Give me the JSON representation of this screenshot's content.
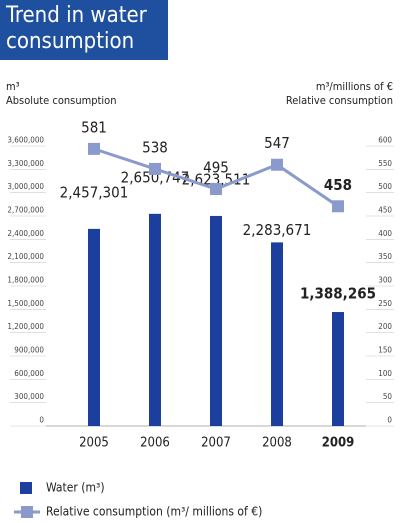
{
  "chart_data": {
    "type": "bar_line",
    "title": "Trend in water consumption",
    "y_unit": "m³",
    "y_label": "Absolute consumption",
    "y2_unit": "m³/millions of €",
    "y2_label": "Relative consumption",
    "categories": [
      "2005",
      "2006",
      "2007",
      "2008",
      "2009"
    ],
    "series": [
      {
        "name": "Water (m³)",
        "type": "bar",
        "color": "#1c3f9e",
        "values": [
          2457301,
          2650747,
          2623511,
          2283671,
          1388265
        ],
        "value_labels": [
          "2,457,301",
          "2,650,747",
          "2,623,511",
          "2,283,671",
          "1,388,265"
        ]
      },
      {
        "name": "Relative consumption (m³/ millions of €)",
        "type": "line",
        "axis": "y2",
        "color": "#8a9acc",
        "values": [
          581,
          538,
          495,
          547,
          458
        ]
      }
    ],
    "ylim": [
      0,
      3600000
    ],
    "yticks": [
      0,
      {
        "value": 300000,
        "label": "300,000"
      },
      {
        "value": 600000,
        "label": "600,000"
      },
      {
        "value": 900000,
        "label": "900,000"
      },
      {
        "value": 1200000,
        "label": "1,200,000"
      },
      {
        "value": 1500000,
        "label": "1,500,000"
      },
      {
        "value": 1800000,
        "label": "1,800,000"
      },
      {
        "value": 2100000,
        "label": "2,100,000"
      },
      {
        "value": 2400000,
        "label": "2,400,000"
      },
      {
        "value": 2700000,
        "label": "2,700,000"
      },
      {
        "value": 3000000,
        "label": "3,000,000"
      },
      {
        "value": 3300000,
        "label": "3,300,000"
      },
      {
        "value": 3600000,
        "label": "3,600,000"
      }
    ],
    "y2lim": [
      0,
      600
    ],
    "y2ticks": [
      0,
      50,
      100,
      150,
      200,
      250,
      300,
      350,
      400,
      450,
      500,
      550,
      600
    ]
  }
}
